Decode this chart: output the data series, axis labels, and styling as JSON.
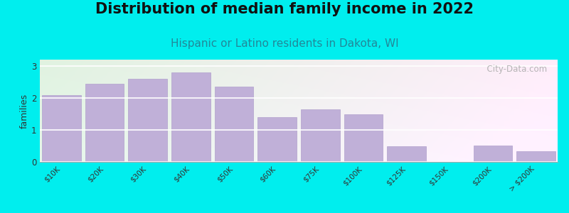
{
  "title": "Distribution of median family income in 2022",
  "subtitle": "Hispanic or Latino residents in Dakota, WI",
  "ylabel": "families",
  "background_color": "#00EEEE",
  "bar_color": "#c0b0d8",
  "bar_edgecolor": "#b0a0cc",
  "categories": [
    "$10K",
    "$20K",
    "$30K",
    "$40K",
    "$50K",
    "$60K",
    "$75K",
    "$100K",
    "$125K",
    "$150K",
    "$200K",
    "> $200K"
  ],
  "values": [
    2.1,
    2.45,
    2.6,
    2.8,
    2.35,
    1.4,
    1.65,
    1.5,
    0.48,
    0.0,
    0.52,
    0.33
  ],
  "bar_widths": [
    0.9,
    0.9,
    0.9,
    0.9,
    0.9,
    0.9,
    0.9,
    0.9,
    0.9,
    0.9,
    0.9,
    0.9
  ],
  "ylim": [
    0,
    3.2
  ],
  "yticks": [
    0,
    1,
    2,
    3
  ],
  "title_fontsize": 15,
  "subtitle_fontsize": 11,
  "ylabel_fontsize": 9,
  "tick_fontsize": 7.5,
  "watermark": "  City-Data.com",
  "subtitle_color": "#228899",
  "title_color": "#111111"
}
